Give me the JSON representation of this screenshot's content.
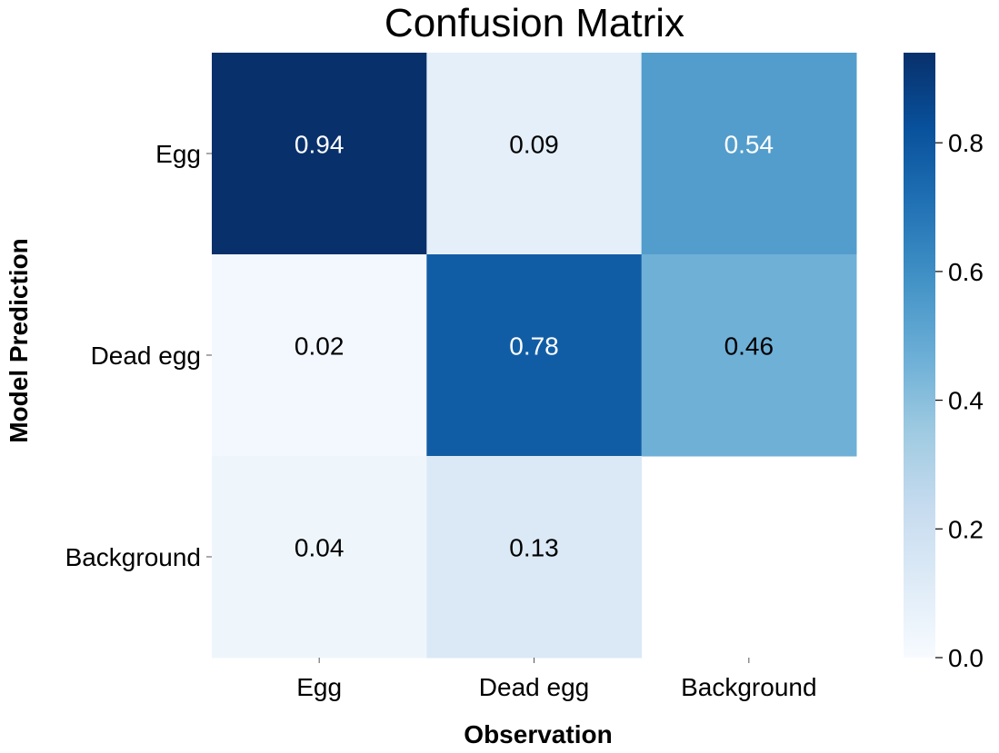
{
  "chart_data": {
    "type": "heatmap",
    "title": "Confusion Matrix",
    "xlabel": "Observation",
    "ylabel": "Model Prediction",
    "x_categories": [
      "Egg",
      "Dead egg",
      "Background"
    ],
    "y_categories": [
      "Egg",
      "Dead egg",
      "Background"
    ],
    "values": [
      [
        0.94,
        0.09,
        0.54
      ],
      [
        0.02,
        0.78,
        0.46
      ],
      [
        0.04,
        0.13,
        null
      ]
    ],
    "colormap": "Blues",
    "value_range": [
      0.0,
      0.94
    ],
    "colorbar": {
      "ticks": [
        0.0,
        0.2,
        0.4,
        0.6,
        0.8
      ],
      "tick_labels": [
        "0.0",
        "0.2",
        "0.4",
        "0.6",
        "0.8"
      ]
    },
    "grid": false,
    "colors": {
      "text_light": "#ffffff",
      "text_dark": "#000000"
    }
  }
}
